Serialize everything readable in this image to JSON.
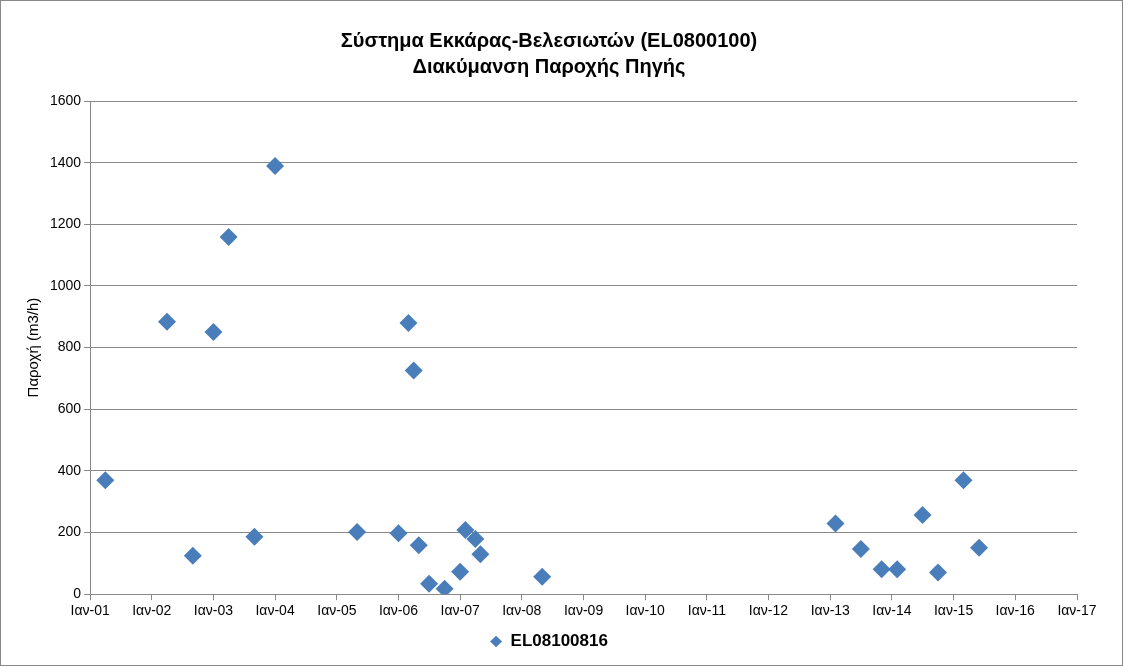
{
  "chart_data": {
    "type": "scatter",
    "title": "Σύστημα Εκκάρας-Βελεσιωτών (EL0800100)",
    "subtitle": "Διακύμανση Παροχής Πηγής",
    "ylabel": "Παροχή (m3/h)",
    "series": [
      {
        "name": "EL08100816",
        "color": "#4a7ebb",
        "x": [
          "2001-04",
          "2002-04",
          "2002-09",
          "2003-01",
          "2003-04",
          "2003-09",
          "2004-01",
          "2005-05",
          "2006-01",
          "2006-03",
          "2006-04",
          "2006-05",
          "2006-07",
          "2006-10",
          "2007-01",
          "2007-02",
          "2007-04",
          "2007-05",
          "2008-05",
          "2013-02",
          "2013-07",
          "2013-11",
          "2014-02",
          "2014-07",
          "2014-10",
          "2015-03",
          "2015-06"
        ],
        "values": [
          370,
          884,
          125,
          851,
          1159,
          186,
          1389,
          202,
          198,
          880,
          726,
          159,
          34,
          18,
          73,
          208,
          179,
          130,
          57,
          229,
          147,
          81,
          81,
          257,
          70,
          370,
          151
        ]
      }
    ],
    "xlim": [
      "2001-01",
      "2017-01"
    ],
    "xticks": [
      {
        "value": "2001-01",
        "label": "Ιαν-01"
      },
      {
        "value": "2002-01",
        "label": "Ιαν-02"
      },
      {
        "value": "2003-01",
        "label": "Ιαν-03"
      },
      {
        "value": "2004-01",
        "label": "Ιαν-04"
      },
      {
        "value": "2005-01",
        "label": "Ιαν-05"
      },
      {
        "value": "2006-01",
        "label": "Ιαν-06"
      },
      {
        "value": "2007-01",
        "label": "Ιαν-07"
      },
      {
        "value": "2008-01",
        "label": "Ιαν-08"
      },
      {
        "value": "2009-01",
        "label": "Ιαν-09"
      },
      {
        "value": "2010-01",
        "label": "Ιαν-10"
      },
      {
        "value": "2011-01",
        "label": "Ιαν-11"
      },
      {
        "value": "2012-01",
        "label": "Ιαν-12"
      },
      {
        "value": "2013-01",
        "label": "Ιαν-13"
      },
      {
        "value": "2014-01",
        "label": "Ιαν-14"
      },
      {
        "value": "2015-01",
        "label": "Ιαν-15"
      },
      {
        "value": "2016-01",
        "label": "Ιαν-16"
      },
      {
        "value": "2017-01",
        "label": "Ιαν-17"
      }
    ],
    "ylim": [
      0,
      1600
    ],
    "yticks": [
      0,
      200,
      400,
      600,
      800,
      1000,
      1200,
      1400,
      1600
    ],
    "grid": "y",
    "legend": "bottom",
    "marker": "diamond"
  }
}
